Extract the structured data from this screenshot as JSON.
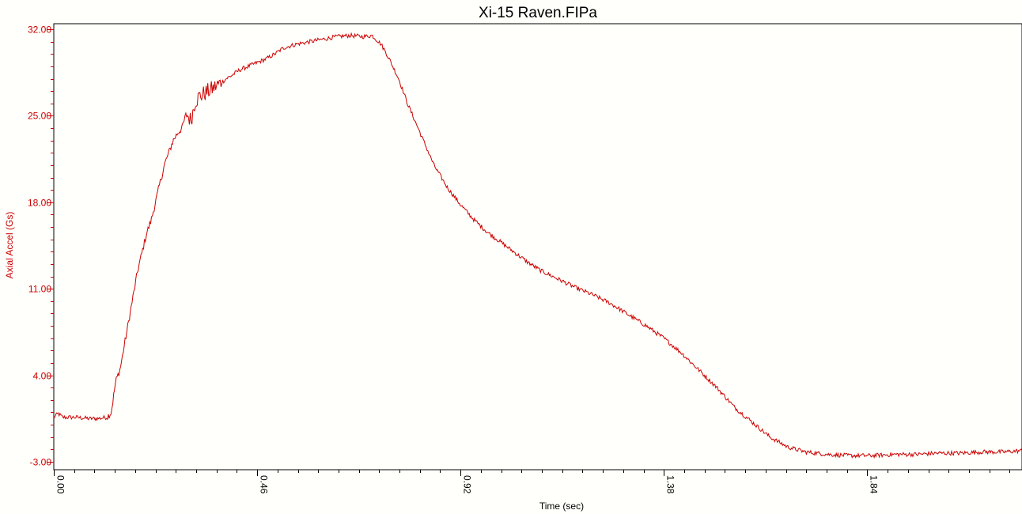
{
  "chart_data": {
    "type": "line",
    "title": "Xi-15 Raven.FIPa",
    "xlabel": "Time (sec)",
    "ylabel": "Axial Accel (Gs)",
    "xlim": [
      0.0,
      2.19
    ],
    "ylim": [
      -3.0,
      32.0
    ],
    "x_ticks": [
      "0.00",
      "0.46",
      "0.92",
      "1.38",
      "1.84"
    ],
    "y_ticks": [
      "32.00",
      "25.00",
      "18.00",
      "11.00",
      "4.00",
      "-3.00"
    ],
    "series": [
      {
        "color": "#cc0000",
        "x": [
          0.0,
          0.01,
          0.02,
          0.05,
          0.08,
          0.1,
          0.12,
          0.13,
          0.14,
          0.15,
          0.16,
          0.17,
          0.18,
          0.19,
          0.2,
          0.21,
          0.22,
          0.23,
          0.24,
          0.25,
          0.26,
          0.27,
          0.28,
          0.29,
          0.3,
          0.31,
          0.32,
          0.33,
          0.34,
          0.35,
          0.36,
          0.37,
          0.38,
          0.39,
          0.4,
          0.42,
          0.44,
          0.46,
          0.48,
          0.5,
          0.52,
          0.55,
          0.58,
          0.61,
          0.64,
          0.67,
          0.7,
          0.72,
          0.74,
          0.75,
          0.76,
          0.78,
          0.8,
          0.83,
          0.86,
          0.89,
          0.92,
          0.95,
          0.98,
          1.01,
          1.04,
          1.07,
          1.1,
          1.14,
          1.18,
          1.22,
          1.26,
          1.3,
          1.34,
          1.38,
          1.42,
          1.46,
          1.5,
          1.54,
          1.58,
          1.62,
          1.66,
          1.7,
          1.75,
          1.8,
          1.85,
          1.9,
          1.95,
          2.0,
          2.05,
          2.1,
          2.15,
          2.19
        ],
        "y": [
          0.6,
          0.9,
          0.6,
          0.6,
          0.5,
          0.5,
          0.6,
          1.0,
          3.5,
          4.5,
          6.5,
          8.5,
          10.5,
          12.5,
          14.0,
          15.5,
          16.5,
          18.0,
          19.5,
          21.0,
          22.0,
          23.0,
          23.6,
          24.0,
          25.2,
          24.6,
          26.2,
          26.6,
          26.8,
          27.0,
          27.2,
          27.5,
          27.7,
          28.0,
          28.2,
          28.7,
          29.0,
          29.3,
          29.6,
          30.0,
          30.5,
          30.8,
          31.0,
          31.2,
          31.4,
          31.5,
          31.4,
          31.5,
          30.8,
          30.2,
          29.5,
          28.0,
          26.0,
          23.5,
          21.0,
          19.2,
          17.8,
          16.6,
          15.6,
          14.8,
          14.0,
          13.2,
          12.5,
          11.8,
          11.1,
          10.5,
          9.8,
          8.9,
          8.0,
          7.0,
          5.8,
          4.4,
          3.0,
          1.4,
          0.2,
          -1.0,
          -1.8,
          -2.2,
          -2.4,
          -2.5,
          -2.5,
          -2.4,
          -2.4,
          -2.3,
          -2.3,
          -2.2,
          -2.2,
          -2.1
        ]
      }
    ]
  }
}
